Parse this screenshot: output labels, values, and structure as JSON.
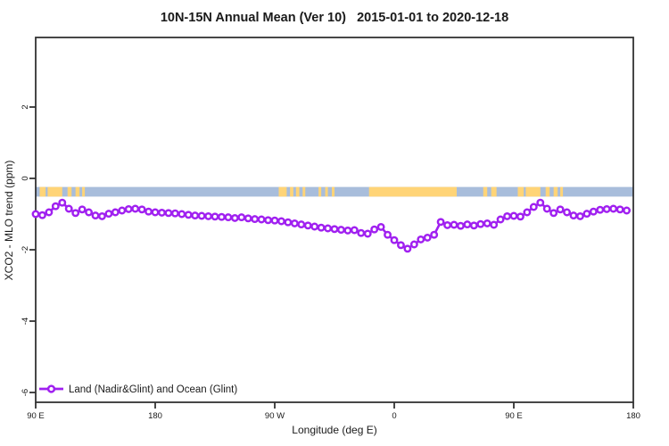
{
  "chart_data": {
    "type": "line",
    "title": "10N-15N Annual Mean (Ver 10)   2015-01-01 to 2020-12-18",
    "xlabel": "Longitude (deg E)",
    "ylabel": "XCO2 - MLO trend (ppm)",
    "xlim": [
      90,
      540
    ],
    "ylim": [
      -6.3,
      3.95
    ],
    "grid": false,
    "x_ticks": [
      {
        "x": 90,
        "label": "90 E"
      },
      {
        "x": 180,
        "label": "180"
      },
      {
        "x": 270,
        "label": "90 W"
      },
      {
        "x": 360,
        "label": "0"
      },
      {
        "x": 450,
        "label": "90 E"
      },
      {
        "x": 540,
        "label": "180"
      }
    ],
    "y_ticks": [
      {
        "y": 2,
        "label": "2"
      },
      {
        "y": 0,
        "label": "0"
      },
      {
        "y": -2,
        "label": "-2"
      },
      {
        "y": -4,
        "label": "-4"
      },
      {
        "y": -6,
        "label": "-6"
      }
    ],
    "map_band": {
      "description": "land/ocean strip drawn across the plot just below y=0",
      "y_top": -0.24,
      "y_bottom": -0.51,
      "ocean_color": "#a8bddb",
      "land_color": "#ffd477",
      "land_segments_lon": [
        [
          93,
          97.5
        ],
        [
          99,
          110
        ],
        [
          114,
          117
        ],
        [
          120,
          123
        ],
        [
          125,
          127
        ],
        [
          273,
          279
        ],
        [
          281.5,
          284
        ],
        [
          286,
          288.5
        ],
        [
          291,
          293
        ],
        [
          303,
          305
        ],
        [
          308,
          310
        ],
        [
          313,
          315
        ],
        [
          341,
          407
        ],
        [
          427,
          430
        ],
        [
          433,
          437
        ],
        [
          453,
          457.5
        ],
        [
          459,
          470
        ],
        [
          474,
          477
        ],
        [
          480,
          483
        ],
        [
          485,
          487
        ]
      ]
    },
    "series": [
      {
        "name": "Land (Nadir&Glint) and Ocean (Glint)",
        "color": "#a020f0",
        "marker": "open-circle",
        "x_start": 90,
        "x_step": 5,
        "values": [
          -1.0,
          -1.03,
          -0.95,
          -0.78,
          -0.68,
          -0.85,
          -0.97,
          -0.87,
          -0.95,
          -1.04,
          -1.06,
          -0.99,
          -0.95,
          -0.9,
          -0.86,
          -0.85,
          -0.87,
          -0.93,
          -0.95,
          -0.96,
          -0.97,
          -0.98,
          -1.0,
          -1.02,
          -1.04,
          -1.05,
          -1.06,
          -1.07,
          -1.08,
          -1.09,
          -1.11,
          -1.09,
          -1.12,
          -1.14,
          -1.15,
          -1.17,
          -1.18,
          -1.2,
          -1.23,
          -1.26,
          -1.29,
          -1.32,
          -1.35,
          -1.38,
          -1.4,
          -1.42,
          -1.44,
          -1.46,
          -1.45,
          -1.53,
          -1.55,
          -1.43,
          -1.36,
          -1.58,
          -1.73,
          -1.87,
          -1.97,
          -1.85,
          -1.71,
          -1.66,
          -1.58,
          -1.22,
          -1.31,
          -1.3,
          -1.33,
          -1.29,
          -1.32,
          -1.28,
          -1.26,
          -1.3,
          -1.15,
          -1.06,
          -1.05,
          -1.07,
          -0.95,
          -0.8,
          -0.68,
          -0.85,
          -0.97,
          -0.87,
          -0.95,
          -1.04,
          -1.06,
          -0.99,
          -0.93,
          -0.88,
          -0.86,
          -0.85,
          -0.87,
          -0.9
        ]
      }
    ],
    "legend": {
      "position": "bottom-left",
      "entries": [
        {
          "label": "Land (Nadir&Glint) and Ocean (Glint)",
          "color": "#a020f0"
        }
      ]
    },
    "axis_color": "#333333"
  }
}
